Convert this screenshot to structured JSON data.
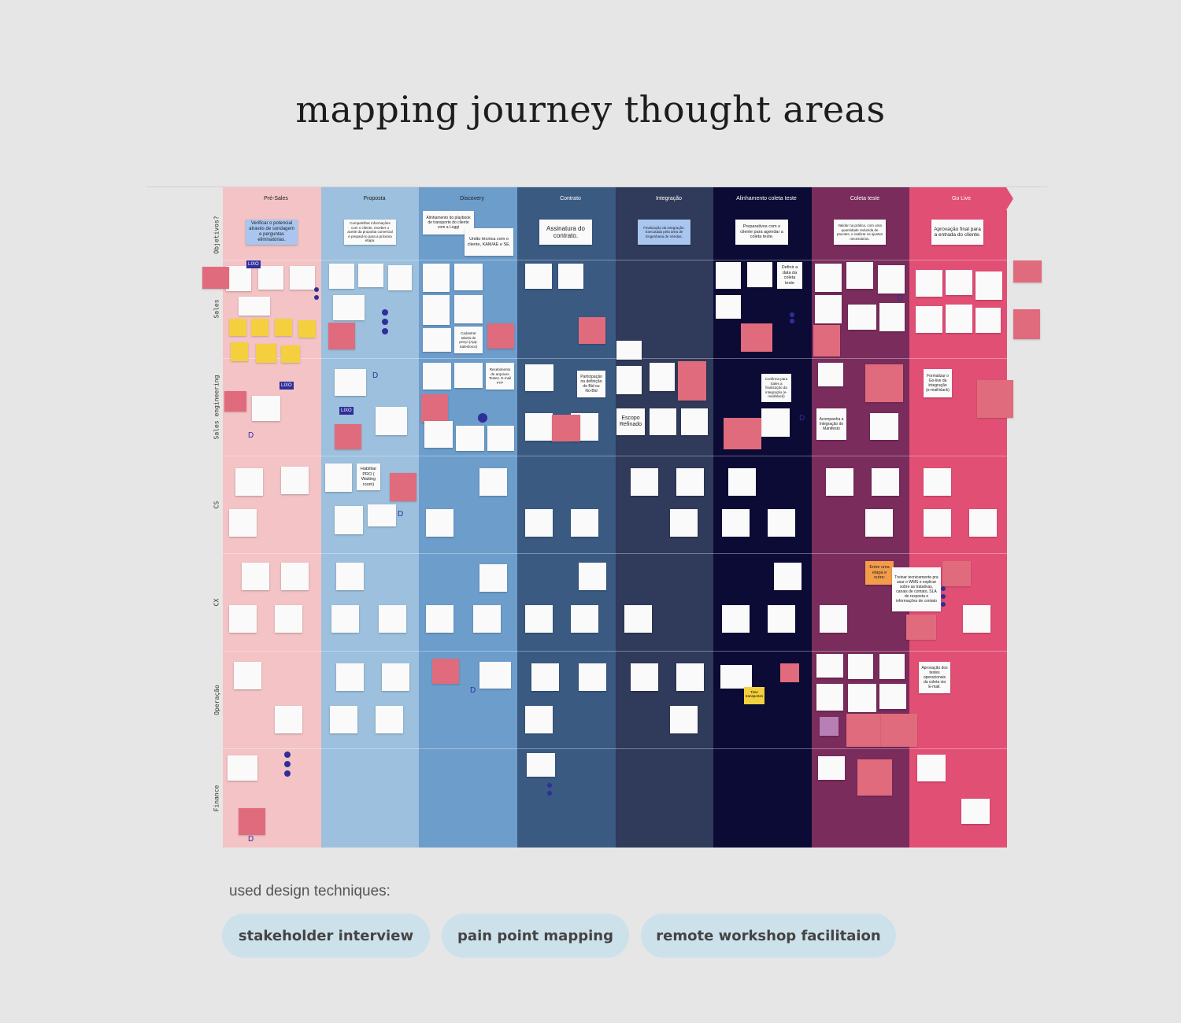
{
  "page": {
    "title": "mapping journey thought areas",
    "techniques_label": "used design techniques:"
  },
  "stages": [
    {
      "label": "Pré-Sales",
      "color": "#f3c3c5"
    },
    {
      "label": "Proposta",
      "color": "#9cc0dd"
    },
    {
      "label": "Discovery",
      "color": "#6d9dcb"
    },
    {
      "label": "Contrato",
      "color": "#3a5a82"
    },
    {
      "label": "Integração",
      "color": "#303a5a"
    },
    {
      "label": "Alinhamento coleta teste",
      "color": "#0b0b36"
    },
    {
      "label": "Coleta teste",
      "color": "#7a2c5c"
    },
    {
      "label": "Go Live",
      "color": "#e24f75"
    }
  ],
  "rows": [
    "Objetivos?",
    "Sales",
    "Sales engineering",
    "CS",
    "CX",
    "Operação",
    "Finance"
  ],
  "objectives": [
    "Verificar o potencial através de sondagem e perguntas eliminatórias.",
    "Compartilhar informações com o cliente, receber o aceite da proposta comercial e prepará-lo para a próxima etapa.",
    "Alinhamento do playbook de transporte do cliente com a Loggi",
    "Assinatura do contrato.",
    "Finalização da integração. Executada pela área de Engenharia de Vendas.",
    "Preparativos com o cliente para agendar a coleta teste.",
    "Validar na prática, com uma quantidade reduzida de pacotes, e realizar os ajustes necessários.",
    "Aprovação final para a entrada do cliente."
  ],
  "notes": {
    "discovery_second": "União técnica com o cliente, KAM/AE e SE.",
    "contrato_escopo": "Escopo Refinado",
    "coleta_entre": "Entre uma etapa e outra:",
    "coleta_treinar": "Treinar tecnicamente pra usar o WMS e explicar sobre as tratativas, canais de contato, SLA de resposta e informações de contato",
    "golive_formalizar": "Formalizar o Go-live da integração (e-mail/slack)",
    "golive_aprovacao": "Aprovação dos testes operacionais da coleta via E-mail.",
    "alinh_definir": "Definir a data da coleta teste",
    "alinh_confirma": "Confirma para Sales a finalização da integração (e-mail/slack)",
    "contrato_participacao": "Participação na definição de Bid ou No-Bid",
    "coleta_acompanha": "Acompanha a integração do Manifesto",
    "discovery_cadastrar": "Cadastrar tabela de preço (App: Salesforce)",
    "discovery_recebimento": "Recebimento de arquivos Testes. E-mail FTP",
    "proposta_habilitar": "Habilitar PRO ( Waiting room)",
    "alinh_tima": "Time transportes",
    "lixo": "LIXO",
    "d": "D"
  },
  "techniques": [
    "stakeholder interview",
    "pain point mapping",
    "remote workshop facilitaion"
  ],
  "colors": {
    "background": "#e6e6e6",
    "pill": "#cde1ea",
    "accent_marker": "#2f2f9a",
    "pink_note": "#e06b7d",
    "yellow_note": "#f4d03f"
  }
}
